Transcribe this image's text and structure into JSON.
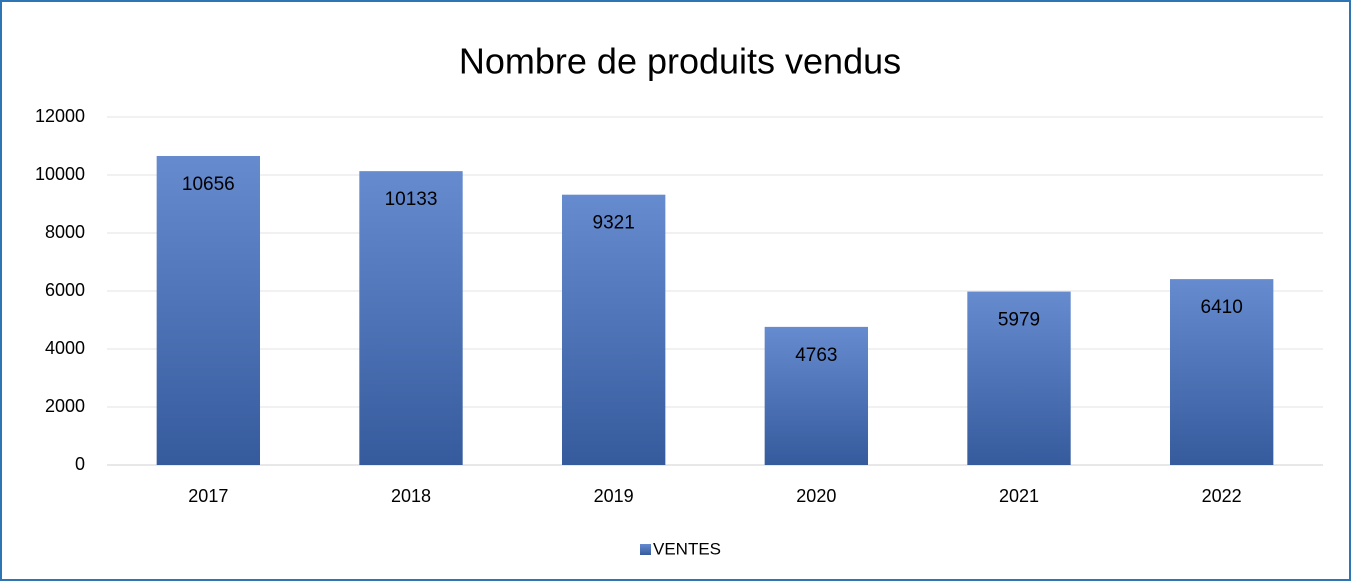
{
  "chart_data": {
    "type": "bar",
    "title": "Nombre de produits vendus",
    "categories": [
      "2017",
      "2018",
      "2019",
      "2020",
      "2021",
      "2022"
    ],
    "series": [
      {
        "name": "VENTES",
        "color": "#4472c4",
        "values": [
          10656,
          10133,
          9321,
          4763,
          5979,
          6410
        ]
      }
    ],
    "ylim": [
      0,
      12000
    ],
    "yticks": [
      0,
      2000,
      4000,
      6000,
      8000,
      10000,
      12000
    ],
    "grid": true,
    "legend": "bottom",
    "data_labels": true
  }
}
